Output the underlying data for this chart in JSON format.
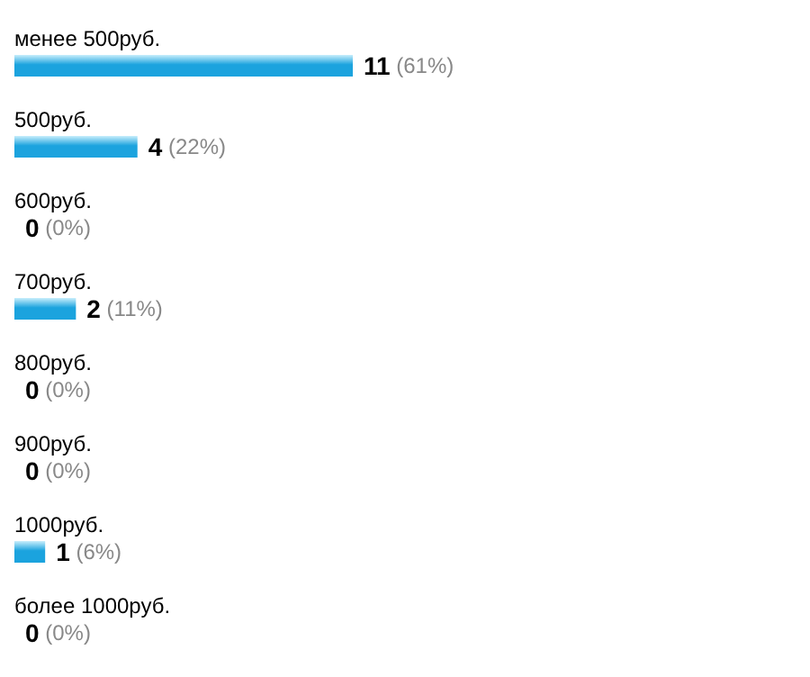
{
  "chart_data": {
    "type": "bar",
    "orientation": "horizontal",
    "color": "#1ba3de",
    "categories": [
      "менее 500руб.",
      "500руб.",
      "600руб.",
      "700руб.",
      "800руб.",
      "900руб.",
      "1000руб.",
      "более 1000руб."
    ],
    "values": [
      11,
      4,
      0,
      2,
      0,
      0,
      1,
      0
    ],
    "value_labels": [
      "11 (61%)",
      "4 (22%)",
      "0 (0%)",
      "2 (11%)",
      "0 (0%)",
      "0 (0%)",
      "1 (6%)",
      "0 (0%)"
    ],
    "grid": false
  }
}
